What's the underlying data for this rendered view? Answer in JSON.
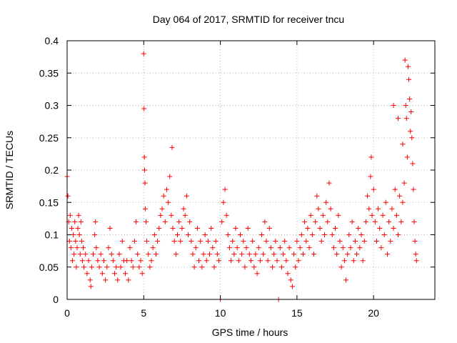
{
  "chart_data": {
    "type": "scatter",
    "title": "Day 064 of 2017, SRMTID for receiver tncu",
    "xlabel": "GPS time / hours",
    "ylabel": "SRMTID / TECUs",
    "xlim": [
      0,
      24
    ],
    "ylim": [
      0,
      0.4
    ],
    "xticks": [
      0,
      5,
      10,
      15,
      20
    ],
    "xtick_labels": [
      "0",
      "5",
      "10",
      "15",
      "20"
    ],
    "yticks": [
      0,
      0.05,
      0.1,
      0.15,
      0.2,
      0.25,
      0.3,
      0.35,
      0.4
    ],
    "ytick_labels": [
      "0",
      "0.05",
      "0.1",
      "0.15",
      "0.2",
      "0.25",
      "0.3",
      "0.35",
      "0.4"
    ],
    "grid": true,
    "marker": "+",
    "color": "#ff0000",
    "series": [
      {
        "name": "SRMTID",
        "points": [
          [
            0.0,
            0.19
          ],
          [
            0.05,
            0.16
          ],
          [
            0.1,
            0.12
          ],
          [
            0.15,
            0.09
          ],
          [
            0.2,
            0.13
          ],
          [
            0.25,
            0.08
          ],
          [
            0.3,
            0.11
          ],
          [
            0.35,
            0.06
          ],
          [
            0.4,
            0.1
          ],
          [
            0.45,
            0.07
          ],
          [
            0.5,
            0.12
          ],
          [
            0.55,
            0.09
          ],
          [
            0.6,
            0.05
          ],
          [
            0.65,
            0.08
          ],
          [
            0.7,
            0.11
          ],
          [
            0.75,
            0.13
          ],
          [
            0.8,
            0.1
          ],
          [
            0.85,
            0.07
          ],
          [
            0.9,
            0.12
          ],
          [
            0.95,
            0.09
          ],
          [
            1.0,
            0.06
          ],
          [
            1.05,
            0.08
          ],
          [
            1.1,
            0.05
          ],
          [
            1.2,
            0.07
          ],
          [
            1.3,
            0.04
          ],
          [
            1.4,
            0.06
          ],
          [
            1.5,
            0.03
          ],
          [
            1.55,
            0.02
          ],
          [
            1.6,
            0.05
          ],
          [
            1.7,
            0.07
          ],
          [
            1.8,
            0.1
          ],
          [
            1.85,
            0.12
          ],
          [
            1.9,
            0.08
          ],
          [
            2.0,
            0.06
          ],
          [
            2.1,
            0.05
          ],
          [
            2.2,
            0.07
          ],
          [
            2.3,
            0.04
          ],
          [
            2.4,
            0.06
          ],
          [
            2.5,
            0.03
          ],
          [
            2.6,
            0.05
          ],
          [
            2.7,
            0.08
          ],
          [
            2.8,
            0.11
          ],
          [
            2.9,
            0.07
          ],
          [
            3.0,
            0.06
          ],
          [
            3.1,
            0.04
          ],
          [
            3.2,
            0.05
          ],
          [
            3.3,
            0.03
          ],
          [
            3.4,
            0.07
          ],
          [
            3.5,
            0.05
          ],
          [
            3.6,
            0.09
          ],
          [
            3.7,
            0.06
          ],
          [
            3.8,
            0.04
          ],
          [
            3.9,
            0.06
          ],
          [
            4.0,
            0.03
          ],
          [
            4.1,
            0.08
          ],
          [
            4.2,
            0.06
          ],
          [
            4.3,
            0.05
          ],
          [
            4.4,
            0.09
          ],
          [
            4.5,
            0.12
          ],
          [
            4.6,
            0.07
          ],
          [
            4.7,
            0.05
          ],
          [
            4.8,
            0.06
          ],
          [
            4.9,
            0.04
          ],
          [
            5.0,
            0.38
          ],
          [
            5.02,
            0.295
          ],
          [
            5.04,
            0.22
          ],
          [
            5.06,
            0.2
          ],
          [
            5.08,
            0.18
          ],
          [
            5.1,
            0.14
          ],
          [
            5.15,
            0.12
          ],
          [
            5.2,
            0.09
          ],
          [
            5.3,
            0.07
          ],
          [
            5.4,
            0.05
          ],
          [
            5.5,
            0.06
          ],
          [
            5.6,
            0.08
          ],
          [
            5.7,
            0.1
          ],
          [
            5.8,
            0.07
          ],
          [
            5.9,
            0.09
          ],
          [
            6.0,
            0.11
          ],
          [
            6.1,
            0.13
          ],
          [
            6.2,
            0.14
          ],
          [
            6.3,
            0.16
          ],
          [
            6.4,
            0.12
          ],
          [
            6.5,
            0.17
          ],
          [
            6.6,
            0.15
          ],
          [
            6.7,
            0.19
          ],
          [
            6.8,
            0.13
          ],
          [
            6.85,
            0.235
          ],
          [
            6.9,
            0.11
          ],
          [
            7.0,
            0.09
          ],
          [
            7.1,
            0.07
          ],
          [
            7.2,
            0.1
          ],
          [
            7.3,
            0.12
          ],
          [
            7.4,
            0.09
          ],
          [
            7.5,
            0.11
          ],
          [
            7.6,
            0.14
          ],
          [
            7.7,
            0.13
          ],
          [
            7.8,
            0.16
          ],
          [
            7.9,
            0.1
          ],
          [
            8.0,
            0.12
          ],
          [
            8.1,
            0.09
          ],
          [
            8.2,
            0.07
          ],
          [
            8.3,
            0.05
          ],
          [
            8.4,
            0.08
          ],
          [
            8.5,
            0.11
          ],
          [
            8.6,
            0.06
          ],
          [
            8.7,
            0.09
          ],
          [
            8.8,
            0.05
          ],
          [
            8.9,
            0.07
          ],
          [
            9.0,
            0.1
          ],
          [
            9.1,
            0.06
          ],
          [
            9.2,
            0.09
          ],
          [
            9.3,
            0.07
          ],
          [
            9.4,
            0.11
          ],
          [
            9.5,
            0.08
          ],
          [
            9.6,
            0.05
          ],
          [
            9.7,
            0.09
          ],
          [
            9.8,
            0.07
          ],
          [
            9.9,
            0.06
          ],
          [
            10.0,
            0.0
          ],
          [
            10.1,
            0.12
          ],
          [
            10.2,
            0.15
          ],
          [
            10.3,
            0.17
          ],
          [
            10.4,
            0.13
          ],
          [
            10.5,
            0.1
          ],
          [
            10.6,
            0.08
          ],
          [
            10.7,
            0.06
          ],
          [
            10.8,
            0.09
          ],
          [
            10.9,
            0.07
          ],
          [
            11.0,
            0.11
          ],
          [
            11.1,
            0.08
          ],
          [
            11.2,
            0.06
          ],
          [
            11.3,
            0.1
          ],
          [
            11.4,
            0.07
          ],
          [
            11.5,
            0.09
          ],
          [
            11.6,
            0.05
          ],
          [
            11.7,
            0.08
          ],
          [
            11.8,
            0.11
          ],
          [
            11.9,
            0.07
          ],
          [
            12.0,
            0.06
          ],
          [
            12.1,
            0.09
          ],
          [
            12.2,
            0.05
          ],
          [
            12.3,
            0.07
          ],
          [
            12.4,
            0.04
          ],
          [
            12.5,
            0.08
          ],
          [
            12.6,
            0.06
          ],
          [
            12.7,
            0.1
          ],
          [
            12.8,
            0.07
          ],
          [
            12.9,
            0.12
          ],
          [
            13.0,
            0.09
          ],
          [
            13.1,
            0.06
          ],
          [
            13.2,
            0.11
          ],
          [
            13.3,
            0.08
          ],
          [
            13.4,
            0.05
          ],
          [
            13.5,
            0.07
          ],
          [
            13.6,
            0.09
          ],
          [
            13.7,
            0.06
          ],
          [
            13.8,
            0.0
          ],
          [
            13.9,
            0.08
          ],
          [
            14.0,
            0.05
          ],
          [
            14.1,
            0.07
          ],
          [
            14.2,
            0.09
          ],
          [
            14.3,
            0.06
          ],
          [
            14.4,
            0.04
          ],
          [
            14.5,
            0.08
          ],
          [
            14.6,
            0.03
          ],
          [
            14.7,
            0.02
          ],
          [
            14.8,
            0.07
          ],
          [
            14.9,
            0.05
          ],
          [
            15.0,
            0.09
          ],
          [
            15.1,
            0.06
          ],
          [
            15.2,
            0.08
          ],
          [
            15.3,
            0.1
          ],
          [
            15.4,
            0.07
          ],
          [
            15.5,
            0.12
          ],
          [
            15.6,
            0.09
          ],
          [
            15.7,
            0.11
          ],
          [
            15.8,
            0.08
          ],
          [
            15.9,
            0.13
          ],
          [
            16.0,
            0.1
          ],
          [
            16.1,
            0.07
          ],
          [
            16.2,
            0.12
          ],
          [
            16.3,
            0.16
          ],
          [
            16.4,
            0.14
          ],
          [
            16.5,
            0.11
          ],
          [
            16.6,
            0.09
          ],
          [
            16.7,
            0.13
          ],
          [
            16.8,
            0.1
          ],
          [
            16.9,
            0.15
          ],
          [
            17.0,
            0.12
          ],
          [
            17.1,
            0.18
          ],
          [
            17.2,
            0.14
          ],
          [
            17.3,
            0.1
          ],
          [
            17.4,
            0.08
          ],
          [
            17.5,
            0.11
          ],
          [
            17.6,
            0.07
          ],
          [
            17.7,
            0.13
          ],
          [
            17.8,
            0.09
          ],
          [
            17.9,
            0.05
          ],
          [
            18.0,
            0.08
          ],
          [
            18.1,
            0.06
          ],
          [
            18.2,
            0.03
          ],
          [
            18.3,
            0.07
          ],
          [
            18.4,
            0.1
          ],
          [
            18.5,
            0.08
          ],
          [
            18.6,
            0.12
          ],
          [
            18.7,
            0.06
          ],
          [
            18.8,
            0.09
          ],
          [
            18.9,
            0.07
          ],
          [
            19.0,
            0.11
          ],
          [
            19.1,
            0.08
          ],
          [
            19.2,
            0.1
          ],
          [
            19.3,
            0.06
          ],
          [
            19.4,
            0.09
          ],
          [
            19.5,
            0.12
          ],
          [
            19.6,
            0.16
          ],
          [
            19.7,
            0.14
          ],
          [
            19.8,
            0.19
          ],
          [
            19.85,
            0.22
          ],
          [
            19.9,
            0.13
          ],
          [
            20.0,
            0.17
          ],
          [
            20.1,
            0.12
          ],
          [
            20.2,
            0.09
          ],
          [
            20.3,
            0.14
          ],
          [
            20.4,
            0.11
          ],
          [
            20.5,
            0.08
          ],
          [
            20.6,
            0.13
          ],
          [
            20.7,
            0.1
          ],
          [
            20.8,
            0.15
          ],
          [
            20.9,
            0.07
          ],
          [
            21.0,
            0.12
          ],
          [
            21.1,
            0.09
          ],
          [
            21.2,
            0.14
          ],
          [
            21.3,
            0.11
          ],
          [
            21.4,
            0.17
          ],
          [
            21.5,
            0.13
          ],
          [
            21.6,
            0.1
          ],
          [
            21.7,
            0.16
          ],
          [
            21.8,
            0.12
          ],
          [
            21.9,
            0.15
          ],
          [
            22.0,
            0.18
          ],
          [
            22.05,
            0.37
          ],
          [
            22.1,
            0.3
          ],
          [
            22.15,
            0.28
          ],
          [
            22.2,
            0.22
          ],
          [
            22.25,
            0.36
          ],
          [
            22.3,
            0.34
          ],
          [
            22.35,
            0.31
          ],
          [
            22.4,
            0.26
          ],
          [
            22.45,
            0.29
          ],
          [
            22.5,
            0.25
          ],
          [
            22.55,
            0.21
          ],
          [
            22.6,
            0.17
          ],
          [
            22.65,
            0.12
          ],
          [
            22.7,
            0.09
          ],
          [
            22.75,
            0.07
          ],
          [
            22.8,
            0.06
          ],
          [
            21.3,
            0.3
          ],
          [
            21.6,
            0.28
          ],
          [
            21.9,
            0.24
          ]
        ]
      }
    ]
  }
}
